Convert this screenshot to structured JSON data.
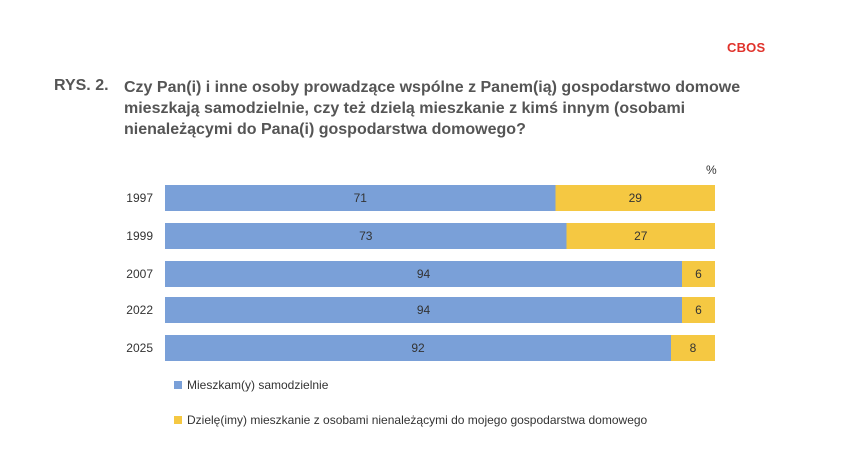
{
  "header": {
    "brand": "CBOS",
    "figure_label": "RYS. 2.",
    "title": "Czy Pan(i) i inne osoby prowadzące wspólne z Panem(ią) gospodarstwo domowe mieszkają samodzielnie, czy też dzielą mieszkanie z kimś innym (osobami nienależącymi do Pana(i) gospodarstwa domowego?"
  },
  "chart_data": {
    "type": "bar",
    "orientation": "horizontal",
    "stacked": true,
    "unit": "%",
    "categories": [
      "1997",
      "1999",
      "2007",
      "2022",
      "2025"
    ],
    "series": [
      {
        "name": "Mieszkam(y) samodzielnie",
        "values": [
          71,
          73,
          94,
          94,
          92
        ],
        "color": "#7aa0d8"
      },
      {
        "name": "Dzielę(imy) mieszkanie z osobami nienależącymi do mojego gospodarstwa domowego",
        "values": [
          29,
          27,
          6,
          6,
          8
        ],
        "color": "#f5c842"
      }
    ],
    "xlim": [
      0,
      100
    ],
    "grid": false,
    "legend": "bottom-left"
  }
}
